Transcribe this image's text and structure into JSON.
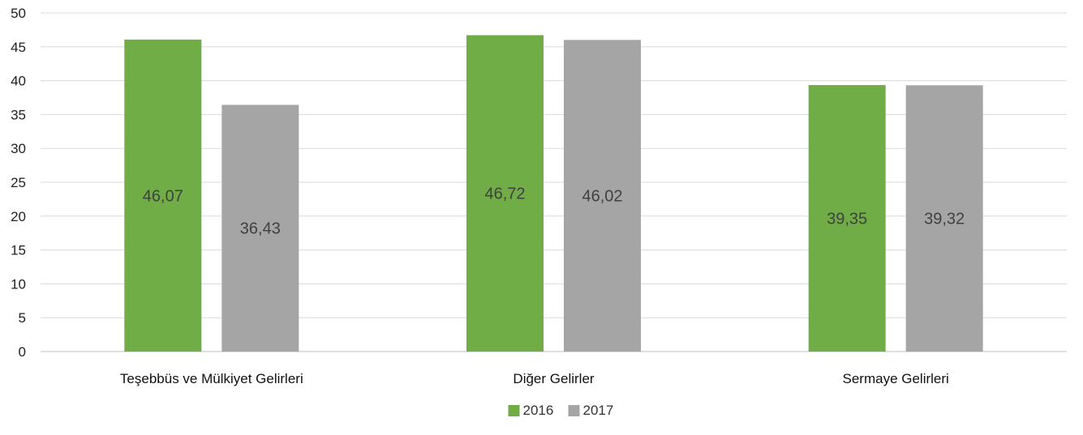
{
  "chart_data": {
    "type": "bar",
    "title": "",
    "xlabel": "",
    "ylabel": "",
    "categories": [
      "Teşebbüs ve Mülkiyet Gelirleri",
      "Diğer Gelirler",
      "Sermaye Gelirleri"
    ],
    "series": [
      {
        "name": "2016",
        "values": [
          46.07,
          46.72,
          39.35
        ],
        "labels": [
          "46,07",
          "46,72",
          "39,35"
        ],
        "color": "#70ad47"
      },
      {
        "name": "2017",
        "values": [
          36.43,
          46.02,
          39.32
        ],
        "labels": [
          "36,43",
          "46,02",
          "39,32"
        ],
        "color": "#a5a5a5"
      }
    ],
    "ylim": [
      0,
      50
    ],
    "yticks": [
      0,
      5,
      10,
      15,
      20,
      25,
      30,
      35,
      40,
      45,
      50
    ],
    "grid": true,
    "legend_position": "bottom"
  }
}
